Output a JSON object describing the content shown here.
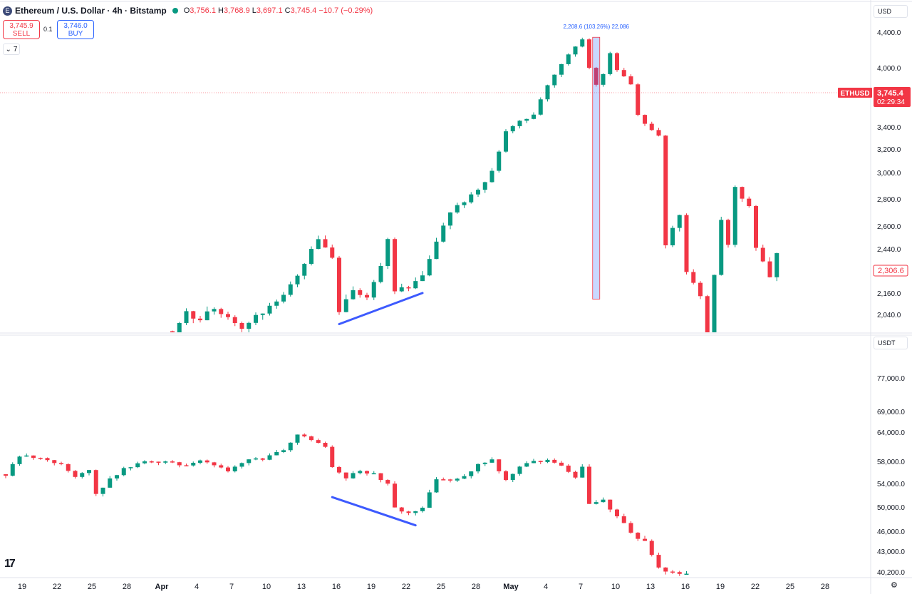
{
  "header": {
    "title": "Ethereum / U.S. Dollar · 4h · Bitstamp",
    "coin_glyph": "E",
    "ohlc": [
      {
        "k": "O",
        "v": "3,756.1"
      },
      {
        "k": "H",
        "v": "3,768.9"
      },
      {
        "k": "L",
        "v": "3,697.1"
      },
      {
        "k": "C",
        "v": "3,745.4"
      },
      {
        "k": "",
        "v": "−10.7 (−0.29%)"
      }
    ]
  },
  "trade": {
    "sell_price": "3,745.9",
    "sell_label": "SELL",
    "buy_price": "3,746.0",
    "buy_label": "BUY",
    "spread": "0.1",
    "collapse_count": "7"
  },
  "units": {
    "top": "USD",
    "bottom": "USDT"
  },
  "chart_data": [
    {
      "type": "candlestick",
      "panel": "top",
      "symbol_label": "ETHUSD",
      "last_price": "3,745.4",
      "countdown": "02:29:34",
      "right_marker": "2,306.6",
      "y_axis_ticks": [
        "4,400.0",
        "4,000.0",
        "3,400.0",
        "3,200.0",
        "3,000.0",
        "2,800.0",
        "2,600.0",
        "2,440.0",
        "2,160.0",
        "2,040.0"
      ],
      "y_axis_values": [
        4400,
        4000,
        3400,
        3200,
        3000,
        2800,
        2600,
        2440,
        2160,
        2040
      ],
      "measure_label": "2,208.6 (103.26%) 22,086",
      "measure_range": {
        "from": 2130,
        "to": 4350,
        "at_index": 85
      },
      "trendline": {
        "from": {
          "index": 48,
          "value": 1990
        },
        "to": {
          "index": 60,
          "value": 2165
        }
      },
      "path": [
        [
          24,
          1950
        ],
        [
          26,
          2060
        ],
        [
          28,
          2010
        ],
        [
          30,
          2080
        ],
        [
          32,
          2030
        ],
        [
          34,
          1970
        ],
        [
          36,
          2040
        ],
        [
          38,
          2090
        ],
        [
          40,
          2150
        ],
        [
          42,
          2280
        ],
        [
          44,
          2440
        ],
        [
          45,
          2500
        ],
        [
          47,
          2380
        ],
        [
          48,
          2060
        ],
        [
          50,
          2170
        ],
        [
          52,
          2140
        ],
        [
          54,
          2330
        ],
        [
          55,
          2520
        ],
        [
          56,
          2180
        ],
        [
          58,
          2200
        ],
        [
          60,
          2260
        ],
        [
          62,
          2480
        ],
        [
          64,
          2720
        ],
        [
          66,
          2790
        ],
        [
          68,
          2880
        ],
        [
          70,
          3010
        ],
        [
          72,
          3360
        ],
        [
          74,
          3480
        ],
        [
          76,
          3520
        ],
        [
          78,
          3840
        ],
        [
          80,
          4060
        ],
        [
          82,
          4260
        ],
        [
          83,
          4320
        ],
        [
          84,
          4010
        ],
        [
          85,
          3840
        ],
        [
          86,
          3950
        ],
        [
          87,
          4170
        ],
        [
          88,
          3990
        ],
        [
          90,
          3830
        ],
        [
          91,
          3530
        ],
        [
          93,
          3370
        ],
        [
          94,
          3320
        ],
        [
          95,
          2480
        ],
        [
          97,
          2700
        ],
        [
          98,
          2300
        ],
        [
          100,
          2150
        ],
        [
          101,
          1950
        ],
        [
          103,
          2640
        ],
        [
          104,
          2480
        ],
        [
          105,
          2900
        ],
        [
          106,
          2820
        ],
        [
          107,
          2750
        ],
        [
          108,
          2460
        ],
        [
          110,
          2250
        ],
        [
          111,
          2430
        ]
      ]
    },
    {
      "type": "candlestick",
      "panel": "bottom",
      "y_axis_ticks": [
        "77,000.0",
        "69,000.0",
        "64,000.0",
        "58,000.0",
        "54,000.0",
        "50,000.0",
        "46,000.0",
        "43,000.0",
        "40,200.0"
      ],
      "y_axis_values": [
        77000,
        69000,
        64000,
        58000,
        54000,
        50000,
        46000,
        43000,
        40200
      ],
      "trendline": {
        "from": {
          "index": 47,
          "value": 51800
        },
        "to": {
          "index": 59,
          "value": 47100
        }
      },
      "path": [
        [
          0,
          55800
        ],
        [
          2,
          59200
        ],
        [
          5,
          59000
        ],
        [
          8,
          57600
        ],
        [
          10,
          55400
        ],
        [
          12,
          56800
        ],
        [
          13,
          52500
        ],
        [
          15,
          54800
        ],
        [
          17,
          56900
        ],
        [
          20,
          58100
        ],
        [
          23,
          58200
        ],
        [
          26,
          57300
        ],
        [
          28,
          58400
        ],
        [
          30,
          57600
        ],
        [
          32,
          56300
        ],
        [
          35,
          58800
        ],
        [
          37,
          58600
        ],
        [
          40,
          60400
        ],
        [
          42,
          63900
        ],
        [
          44,
          62600
        ],
        [
          46,
          61100
        ],
        [
          47,
          57000
        ],
        [
          49,
          55300
        ],
        [
          51,
          56400
        ],
        [
          53,
          55800
        ],
        [
          55,
          54200
        ],
        [
          56,
          49800
        ],
        [
          58,
          49300
        ],
        [
          60,
          50000
        ],
        [
          62,
          54700
        ],
        [
          64,
          54800
        ],
        [
          66,
          55300
        ],
        [
          68,
          57800
        ],
        [
          70,
          58300
        ],
        [
          72,
          54800
        ],
        [
          74,
          57300
        ],
        [
          76,
          58000
        ],
        [
          78,
          58400
        ],
        [
          80,
          57200
        ],
        [
          82,
          55200
        ],
        [
          83,
          56900
        ],
        [
          84,
          50400
        ],
        [
          86,
          51200
        ],
        [
          88,
          48700
        ],
        [
          90,
          45800
        ],
        [
          92,
          44400
        ],
        [
          94,
          40800
        ],
        [
          96,
          40300
        ],
        [
          98,
          39900
        ]
      ]
    }
  ],
  "x_axis": {
    "labels": [
      "19",
      "22",
      "25",
      "28",
      "Apr",
      "4",
      "7",
      "10",
      "13",
      "16",
      "19",
      "22",
      "25",
      "28",
      "May",
      "4",
      "7",
      "10",
      "13",
      "16",
      "19",
      "22",
      "25",
      "28"
    ],
    "bold": [
      "Apr",
      "May"
    ]
  }
}
